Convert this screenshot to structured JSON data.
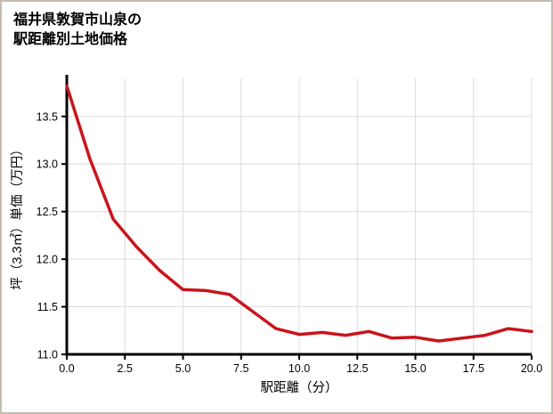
{
  "chart_data": {
    "type": "line",
    "title_lines": [
      "福井県敦賀市山泉の",
      "駅距離別土地価格"
    ],
    "xlabel": "駅距離（分）",
    "ylabel": "坪（3.3㎡）単価（万円）",
    "x": [
      0,
      1,
      2,
      3,
      4,
      5,
      6,
      7,
      8,
      9,
      10,
      11,
      12,
      13,
      14,
      15,
      16,
      17,
      18,
      19,
      20
    ],
    "y": [
      13.82,
      13.05,
      12.42,
      12.13,
      11.88,
      11.68,
      11.67,
      11.63,
      11.45,
      11.27,
      11.21,
      11.23,
      11.2,
      11.24,
      11.17,
      11.18,
      11.14,
      11.17,
      11.2,
      11.27,
      11.24
    ],
    "xlim": [
      0,
      20
    ],
    "ylim": [
      11.0,
      13.9
    ],
    "xticks": [
      0.0,
      2.5,
      5.0,
      7.5,
      10.0,
      12.5,
      15.0,
      17.5,
      20.0
    ],
    "xtick_labels": [
      "0.0",
      "2.5",
      "5.0",
      "7.5",
      "10.0",
      "12.5",
      "15.0",
      "17.5",
      "20.0"
    ],
    "yticks": [
      11.0,
      11.5,
      12.0,
      12.5,
      13.0,
      13.5
    ],
    "ytick_labels": [
      "11.0",
      "11.5",
      "12.0",
      "12.5",
      "13.0",
      "13.5"
    ],
    "grid": true,
    "legend": "none",
    "line_color": "#c9141b",
    "axis_color": "#000000",
    "grid_color": "#dcdcdc",
    "text_color": "#000000"
  }
}
